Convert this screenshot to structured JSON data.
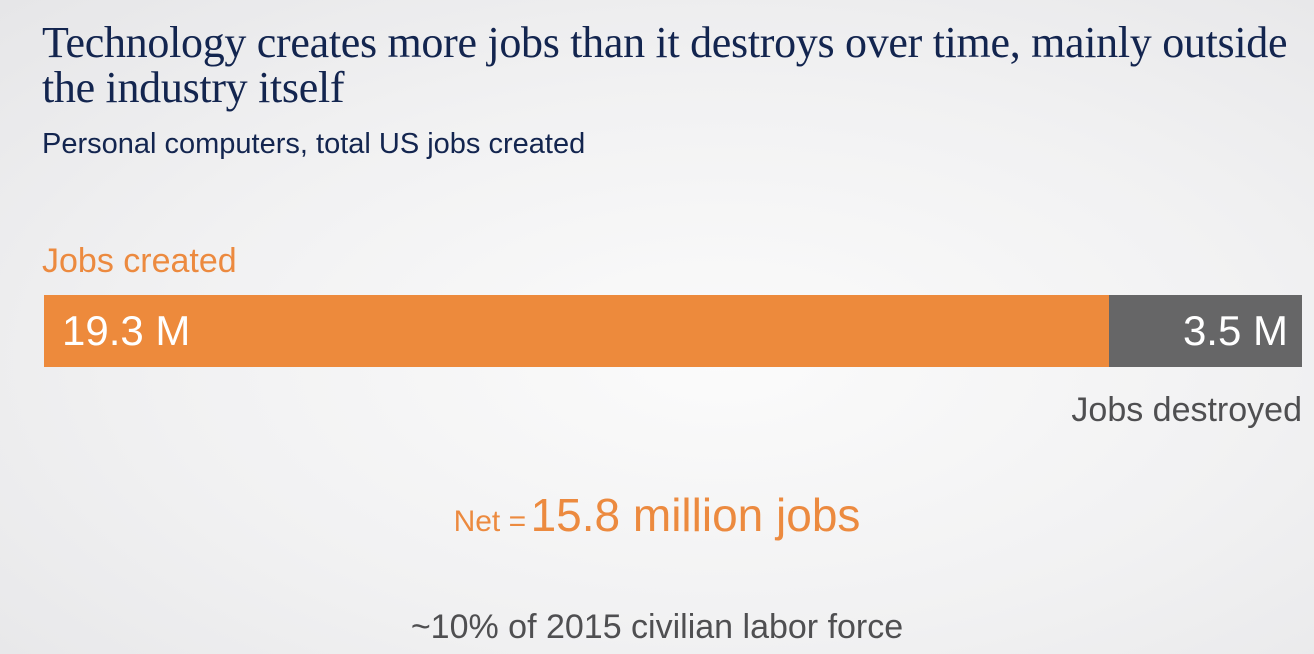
{
  "chart_data": {
    "type": "bar",
    "title": "Technology creates more jobs than it destroys over time, mainly outside the industry itself",
    "subtitle": "Personal computers, total US jobs created",
    "series": [
      {
        "name": "Jobs created",
        "value": 19.3,
        "label": "19.3 M",
        "color": "#ed8a3c"
      },
      {
        "name": "Jobs destroyed",
        "value": 3.5,
        "label": "3.5 M",
        "color": "#666667"
      }
    ],
    "net": {
      "label": "Net =",
      "value": 15.8,
      "text": "15.8 million jobs"
    },
    "footnote": "~10% of 2015 civilian labor force"
  }
}
